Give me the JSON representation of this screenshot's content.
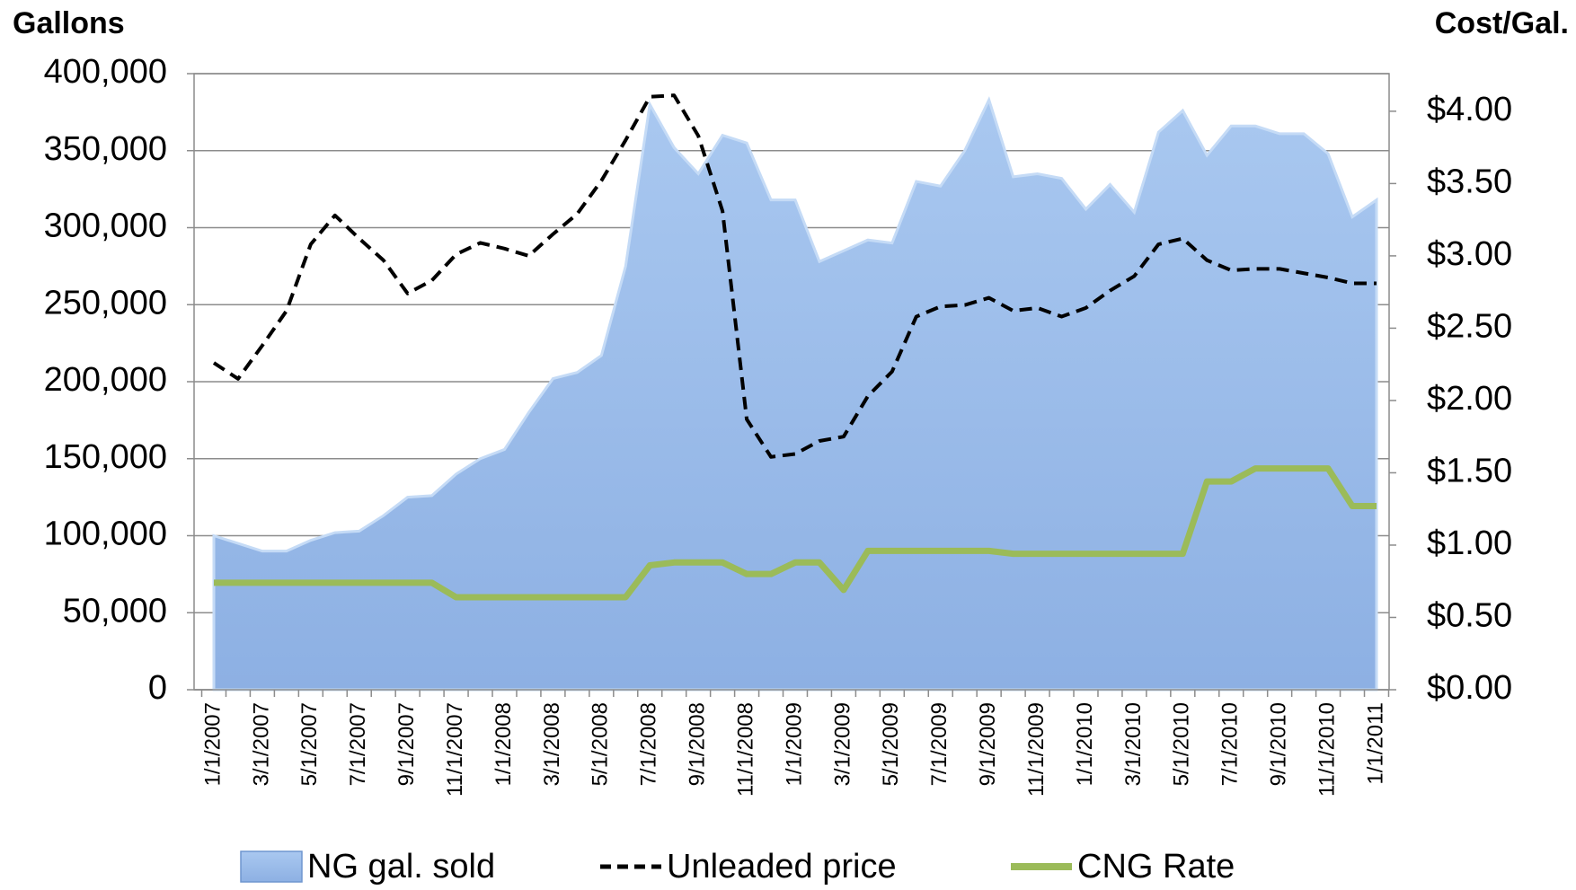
{
  "chart_data": {
    "type": "combo",
    "y_label": "Gallons",
    "y2_label": "Cost/Gal.",
    "categories": [
      "1/1/2007",
      null,
      "3/1/2007",
      null,
      "5/1/2007",
      null,
      "7/1/2007",
      null,
      "9/1/2007",
      null,
      "11/1/2007",
      null,
      "1/1/2008",
      null,
      "3/1/2008",
      null,
      "5/1/2008",
      null,
      "7/1/2008",
      null,
      "9/1/2008",
      null,
      "11/1/2008",
      null,
      "1/1/2009",
      null,
      "3/1/2009",
      null,
      "5/1/2009",
      null,
      "7/1/2009",
      null,
      "9/1/2009",
      null,
      "11/1/2009",
      null,
      "1/1/2010",
      null,
      "3/1/2010",
      null,
      "5/1/2010",
      null,
      "7/1/2010",
      null,
      "9/1/2010",
      null,
      "11/1/2010",
      null,
      "1/1/2011"
    ],
    "series": [
      {
        "name": "NG gal. sold",
        "type": "area",
        "color": "#95b8e8",
        "values": [
          100000,
          95000,
          90000,
          90000,
          97000,
          102000,
          103000,
          113000,
          125000,
          126000,
          140000,
          150000,
          156000,
          180000,
          202000,
          206000,
          217000,
          275000,
          380000,
          352000,
          335000,
          360000,
          355000,
          318000,
          318000,
          278000,
          285000,
          292000,
          290000,
          330000,
          327000,
          350000,
          383000,
          333000,
          335000,
          332000,
          312000,
          328000,
          310000,
          362000,
          376000,
          347000,
          366000,
          366000,
          361000,
          361000,
          348000,
          307000,
          318000
        ]
      },
      {
        "name": "Unleaded price",
        "type": "line",
        "dash": true,
        "color": "#000000",
        "axis": "y2",
        "values": [
          2.26,
          2.15,
          2.38,
          2.62,
          3.08,
          3.28,
          3.12,
          2.97,
          2.74,
          2.83,
          3.01,
          3.09,
          3.05,
          3.0,
          3.15,
          3.29,
          3.52,
          3.8,
          4.1,
          4.11,
          3.83,
          3.31,
          1.87,
          1.61,
          1.63,
          1.72,
          1.75,
          2.03,
          2.2,
          2.58,
          2.65,
          2.66,
          2.71,
          2.62,
          2.64,
          2.58,
          2.64,
          2.76,
          2.86,
          3.08,
          3.12,
          2.97,
          2.9,
          2.91,
          2.91,
          2.88,
          2.85,
          2.81,
          2.81
        ]
      },
      {
        "name": "CNG Rate",
        "type": "line",
        "dash": false,
        "color": "#9bbb59",
        "axis": "y2",
        "values": [
          0.74,
          0.74,
          0.74,
          0.74,
          0.74,
          0.74,
          0.74,
          0.74,
          0.74,
          0.74,
          0.64,
          0.64,
          0.64,
          0.64,
          0.64,
          0.64,
          0.64,
          0.64,
          0.86,
          0.88,
          0.88,
          0.88,
          0.8,
          0.8,
          0.88,
          0.88,
          0.69,
          0.96,
          0.96,
          0.96,
          0.96,
          0.96,
          0.96,
          0.94,
          0.94,
          0.94,
          0.94,
          0.94,
          0.94,
          0.94,
          0.94,
          1.44,
          1.44,
          1.53,
          1.53,
          1.53,
          1.53,
          1.27,
          1.27
        ]
      }
    ],
    "ylim": [
      0,
      400000
    ],
    "yticks": [
      0,
      {
        "value": 50000,
        "label": "50,000"
      },
      {
        "value": 100000,
        "label": "100,000"
      },
      {
        "value": 150000,
        "label": "150,000"
      },
      {
        "value": 200000,
        "label": "200,000"
      },
      {
        "value": 250000,
        "label": "250,000"
      },
      {
        "value": 300000,
        "label": "300,000"
      },
      {
        "value": 350000,
        "label": "350,000"
      },
      {
        "value": 400000,
        "label": "400,000"
      }
    ],
    "y2lim": [
      0,
      4.26
    ],
    "y2ticks": [
      {
        "value": 0,
        "label": "$0.00"
      },
      {
        "value": 0.5,
        "label": "$0.50"
      },
      {
        "value": 1,
        "label": "$1.00"
      },
      {
        "value": 1.5,
        "label": "$1.50"
      },
      {
        "value": 2,
        "label": "$2.00"
      },
      {
        "value": 2.5,
        "label": "$2.50"
      },
      {
        "value": 3,
        "label": "$3.00"
      },
      {
        "value": 3.5,
        "label": "$3.50"
      },
      {
        "value": 4,
        "label": "$4.00"
      }
    ],
    "grid": true,
    "legend": "bottom"
  }
}
